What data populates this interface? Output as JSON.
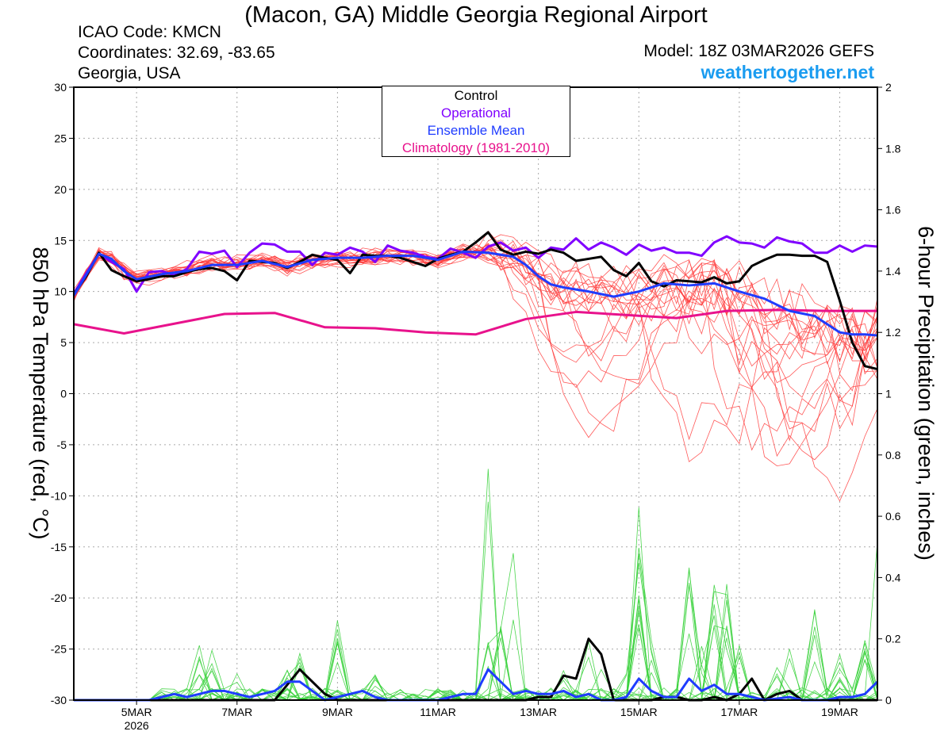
{
  "header": {
    "title": "(Macon, GA) Middle Georgia Regional Airport",
    "icao": "ICAO Code: KMCN",
    "coordinates": "Coordinates: 32.69, -83.65",
    "region": "Georgia, USA",
    "model": "Model: 18Z 03MAR2026 GEFS",
    "site": "weathertogether.net"
  },
  "colors": {
    "control": "#000000",
    "operational": "#8000ff",
    "mean": "#1f3cff",
    "climatology": "#e8128c",
    "temp_members": "#ff3b3b",
    "precip_members": "#39d13b",
    "site": "#1a9cf0",
    "grid": "#aaaaaa"
  },
  "chart_data": {
    "type": "line",
    "title": "(Macon, GA) Middle Georgia Regional Airport",
    "ylabel_left": "850 hPa Temperature (red, °C)",
    "ylabel_right": "6-hour Precipitation (green, inches)",
    "y_left_range": [
      -30,
      30
    ],
    "y_left_ticks": [
      "30",
      "25",
      "20",
      "15",
      "10",
      "5",
      "0",
      "-5",
      "-10",
      "-15",
      "-20",
      "-25",
      "-30"
    ],
    "y_right_range": [
      0,
      2
    ],
    "y_right_ticks": [
      "2",
      "1.8",
      "1.6",
      "1.4",
      "1.2",
      "1",
      "0.8",
      "0.6",
      "0.4",
      "0.2",
      "0"
    ],
    "x_range_days": [
      3.75,
      19.75
    ],
    "x_ticks": [
      {
        "day": 5,
        "label": "5MAR",
        "sublabel": "2026"
      },
      {
        "day": 7,
        "label": "7MAR",
        "sublabel": ""
      },
      {
        "day": 9,
        "label": "9MAR",
        "sublabel": ""
      },
      {
        "day": 11,
        "label": "11MAR",
        "sublabel": ""
      },
      {
        "day": 13,
        "label": "13MAR",
        "sublabel": ""
      },
      {
        "day": 15,
        "label": "15MAR",
        "sublabel": ""
      },
      {
        "day": 17,
        "label": "17MAR",
        "sublabel": ""
      },
      {
        "day": 19,
        "label": "19MAR",
        "sublabel": ""
      }
    ],
    "grid": true,
    "legend": {
      "position": "top-center",
      "entries": [
        "Control",
        "Operational",
        "Ensemble Mean",
        "Climatology (1981-2010)"
      ]
    },
    "series": [
      {
        "name": "Climatology (1981-2010)",
        "axis": "left",
        "role": "climatology",
        "points": [
          [
            3.75,
            6.8
          ],
          [
            4.75,
            5.9
          ],
          [
            6.75,
            7.8
          ],
          [
            7.75,
            7.9
          ],
          [
            8.75,
            6.5
          ],
          [
            9.75,
            6.4
          ],
          [
            10.75,
            6.0
          ],
          [
            11.75,
            5.8
          ],
          [
            12.75,
            7.3
          ],
          [
            13.75,
            8.0
          ],
          [
            15.75,
            7.4
          ],
          [
            16.75,
            8.1
          ],
          [
            17.75,
            8.2
          ],
          [
            18.75,
            8.1
          ],
          [
            19.75,
            8.1
          ]
        ]
      },
      {
        "name": "Operational",
        "axis": "left",
        "role": "operational",
        "points": [
          [
            3.75,
            9.8
          ],
          [
            4.0,
            11.8
          ],
          [
            4.25,
            13.7
          ],
          [
            4.5,
            12.9
          ],
          [
            4.75,
            12.2
          ],
          [
            5.0,
            10.0
          ],
          [
            5.25,
            11.9
          ],
          [
            5.5,
            12.0
          ],
          [
            5.75,
            11.6
          ],
          [
            6.0,
            12.2
          ],
          [
            6.25,
            13.9
          ],
          [
            6.5,
            13.7
          ],
          [
            6.75,
            14.0
          ],
          [
            7.0,
            12.4
          ],
          [
            7.25,
            13.8
          ],
          [
            7.5,
            14.7
          ],
          [
            7.75,
            14.6
          ],
          [
            8.0,
            13.9
          ],
          [
            8.25,
            13.9
          ],
          [
            8.5,
            12.6
          ],
          [
            8.75,
            13.8
          ],
          [
            9.0,
            13.6
          ],
          [
            9.25,
            14.3
          ],
          [
            9.5,
            13.9
          ],
          [
            9.75,
            12.9
          ],
          [
            10.0,
            14.5
          ],
          [
            10.25,
            14.0
          ],
          [
            10.5,
            13.8
          ],
          [
            10.75,
            13.4
          ],
          [
            11.0,
            13.2
          ],
          [
            11.25,
            14.2
          ],
          [
            11.5,
            13.8
          ],
          [
            11.75,
            13.3
          ],
          [
            12.0,
            14.4
          ],
          [
            12.25,
            14.8
          ],
          [
            12.5,
            14.0
          ],
          [
            12.75,
            14.3
          ],
          [
            13.0,
            13.3
          ],
          [
            13.25,
            14.3
          ],
          [
            13.5,
            14.1
          ],
          [
            13.75,
            15.2
          ],
          [
            14.0,
            14.1
          ],
          [
            14.25,
            14.8
          ],
          [
            14.5,
            14.3
          ],
          [
            14.75,
            13.6
          ],
          [
            15.0,
            14.6
          ],
          [
            15.25,
            14.0
          ],
          [
            15.5,
            14.3
          ],
          [
            15.75,
            13.8
          ],
          [
            16.0,
            13.8
          ],
          [
            16.25,
            13.5
          ],
          [
            16.5,
            14.8
          ],
          [
            16.75,
            15.4
          ],
          [
            17.0,
            14.8
          ],
          [
            17.25,
            14.7
          ],
          [
            17.5,
            14.3
          ],
          [
            17.75,
            15.3
          ],
          [
            18.0,
            14.9
          ],
          [
            18.25,
            14.7
          ],
          [
            18.5,
            13.8
          ],
          [
            18.75,
            13.8
          ],
          [
            19.0,
            14.5
          ],
          [
            19.25,
            13.9
          ],
          [
            19.5,
            14.5
          ],
          [
            19.75,
            14.4
          ]
        ]
      },
      {
        "name": "Control",
        "axis": "left",
        "role": "control",
        "points": [
          [
            3.75,
            9.7
          ],
          [
            4.0,
            11.5
          ],
          [
            4.25,
            13.8
          ],
          [
            4.5,
            12.1
          ],
          [
            4.75,
            11.5
          ],
          [
            5.0,
            11.0
          ],
          [
            5.25,
            11.2
          ],
          [
            5.5,
            11.5
          ],
          [
            5.75,
            11.5
          ],
          [
            6.0,
            11.9
          ],
          [
            6.25,
            12.2
          ],
          [
            6.5,
            12.3
          ],
          [
            6.75,
            12.0
          ],
          [
            7.0,
            11.1
          ],
          [
            7.25,
            13.0
          ],
          [
            7.5,
            12.9
          ],
          [
            7.75,
            12.8
          ],
          [
            8.0,
            12.3
          ],
          [
            8.25,
            12.9
          ],
          [
            8.5,
            13.6
          ],
          [
            8.75,
            13.3
          ],
          [
            9.0,
            13.1
          ],
          [
            9.25,
            11.8
          ],
          [
            9.5,
            13.6
          ],
          [
            9.75,
            13.5
          ],
          [
            10.0,
            13.5
          ],
          [
            10.25,
            13.3
          ],
          [
            10.5,
            12.9
          ],
          [
            10.75,
            12.5
          ],
          [
            11.0,
            13.2
          ],
          [
            11.25,
            13.6
          ],
          [
            11.5,
            13.9
          ],
          [
            11.75,
            14.8
          ],
          [
            12.0,
            15.8
          ],
          [
            12.25,
            14.1
          ],
          [
            12.5,
            13.6
          ],
          [
            12.75,
            13.9
          ],
          [
            13.0,
            13.7
          ],
          [
            13.25,
            14.1
          ],
          [
            13.5,
            13.8
          ],
          [
            13.75,
            13.0
          ],
          [
            14.0,
            13.2
          ],
          [
            14.25,
            13.4
          ],
          [
            14.5,
            12.1
          ],
          [
            14.75,
            11.5
          ],
          [
            15.0,
            12.8
          ],
          [
            15.25,
            11.0
          ],
          [
            15.5,
            10.5
          ],
          [
            15.75,
            11.1
          ],
          [
            16.0,
            11.0
          ],
          [
            16.25,
            10.9
          ],
          [
            16.5,
            11.4
          ],
          [
            16.75,
            10.8
          ],
          [
            17.0,
            11.0
          ],
          [
            17.25,
            12.5
          ],
          [
            17.5,
            13.1
          ],
          [
            17.75,
            13.6
          ],
          [
            18.0,
            13.6
          ],
          [
            18.25,
            13.5
          ],
          [
            18.5,
            13.5
          ],
          [
            18.75,
            12.9
          ],
          [
            19.0,
            9.1
          ],
          [
            19.25,
            5.0
          ],
          [
            19.5,
            2.7
          ],
          [
            19.75,
            2.4
          ]
        ]
      },
      {
        "name": "Ensemble Mean",
        "axis": "left",
        "role": "mean",
        "points": [
          [
            3.75,
            9.6
          ],
          [
            4.25,
            13.7
          ],
          [
            4.5,
            13.2
          ],
          [
            4.75,
            12.0
          ],
          [
            5.0,
            11.2
          ],
          [
            5.5,
            11.7
          ],
          [
            6.0,
            12.0
          ],
          [
            6.5,
            12.6
          ],
          [
            7.0,
            12.6
          ],
          [
            7.5,
            13.0
          ],
          [
            8.0,
            12.4
          ],
          [
            8.5,
            13.1
          ],
          [
            9.0,
            13.3
          ],
          [
            9.5,
            13.3
          ],
          [
            10.0,
            13.5
          ],
          [
            10.5,
            13.5
          ],
          [
            11.0,
            13.1
          ],
          [
            11.5,
            13.9
          ],
          [
            12.0,
            13.8
          ],
          [
            12.5,
            13.4
          ],
          [
            12.75,
            12.6
          ],
          [
            13.0,
            11.5
          ],
          [
            13.25,
            10.7
          ],
          [
            13.5,
            10.4
          ],
          [
            13.75,
            10.2
          ],
          [
            14.0,
            10.0
          ],
          [
            14.5,
            9.5
          ],
          [
            15.0,
            10.0
          ],
          [
            15.5,
            10.8
          ],
          [
            16.0,
            10.6
          ],
          [
            16.5,
            10.8
          ],
          [
            17.0,
            10.0
          ],
          [
            17.5,
            9.3
          ],
          [
            18.0,
            8.1
          ],
          [
            18.5,
            7.6
          ],
          [
            18.75,
            6.8
          ],
          [
            19.0,
            6.0
          ],
          [
            19.25,
            5.8
          ],
          [
            19.5,
            5.8
          ],
          [
            19.75,
            5.7
          ]
        ]
      },
      {
        "name": "Control precipitation",
        "axis": "right",
        "role": "control",
        "points": [
          [
            3.75,
            0
          ],
          [
            7.5,
            0
          ],
          [
            7.75,
            0.0
          ],
          [
            8.0,
            0.05
          ],
          [
            8.25,
            0.1
          ],
          [
            8.5,
            0.06
          ],
          [
            8.75,
            0.02
          ],
          [
            9.0,
            0
          ],
          [
            11.5,
            0
          ],
          [
            12.75,
            0
          ],
          [
            13.0,
            0.01
          ],
          [
            13.25,
            0.01
          ],
          [
            13.5,
            0.08
          ],
          [
            13.75,
            0.07
          ],
          [
            14.0,
            0.2
          ],
          [
            14.25,
            0.15
          ],
          [
            14.5,
            0.0
          ],
          [
            15.0,
            0
          ],
          [
            15.25,
            0.0
          ],
          [
            15.5,
            0.01
          ],
          [
            15.75,
            0.01
          ],
          [
            16.0,
            0.0
          ],
          [
            16.25,
            0.0
          ],
          [
            16.5,
            0.01
          ],
          [
            16.75,
            0.0
          ],
          [
            17.0,
            0.02
          ],
          [
            17.25,
            0.07
          ],
          [
            17.5,
            0.0
          ],
          [
            17.75,
            0.02
          ],
          [
            18.0,
            0.03
          ],
          [
            18.25,
            0.0
          ],
          [
            19.75,
            0
          ]
        ]
      },
      {
        "name": "Ensemble Mean precipitation",
        "axis": "right",
        "role": "mean",
        "points": [
          [
            3.75,
            0
          ],
          [
            5.25,
            0
          ],
          [
            5.5,
            0.01
          ],
          [
            5.75,
            0.02
          ],
          [
            6.0,
            0.01
          ],
          [
            6.25,
            0.02
          ],
          [
            6.5,
            0.03
          ],
          [
            6.75,
            0.03
          ],
          [
            7.0,
            0.02
          ],
          [
            7.25,
            0.01
          ],
          [
            7.5,
            0.02
          ],
          [
            7.75,
            0.03
          ],
          [
            8.0,
            0.06
          ],
          [
            8.25,
            0.06
          ],
          [
            8.5,
            0.03
          ],
          [
            8.75,
            0.0
          ],
          [
            9.0,
            0.01
          ],
          [
            9.25,
            0.02
          ],
          [
            9.5,
            0.03
          ],
          [
            9.75,
            0.01
          ],
          [
            10.0,
            0.0
          ],
          [
            11.0,
            0.0
          ],
          [
            11.25,
            0.01
          ],
          [
            11.5,
            0.02
          ],
          [
            11.75,
            0.02
          ],
          [
            12.0,
            0.1
          ],
          [
            12.25,
            0.06
          ],
          [
            12.5,
            0.02
          ],
          [
            12.75,
            0.03
          ],
          [
            13.0,
            0.02
          ],
          [
            13.25,
            0.02
          ],
          [
            13.5,
            0.03
          ],
          [
            13.75,
            0.01
          ],
          [
            14.0,
            0.02
          ],
          [
            14.25,
            0.0
          ],
          [
            14.5,
            0.0
          ],
          [
            14.75,
            0.01
          ],
          [
            15.0,
            0.07
          ],
          [
            15.25,
            0.03
          ],
          [
            15.5,
            0.01
          ],
          [
            15.75,
            0.01
          ],
          [
            16.0,
            0.07
          ],
          [
            16.25,
            0.03
          ],
          [
            16.5,
            0.05
          ],
          [
            16.75,
            0.02
          ],
          [
            17.0,
            0.02
          ],
          [
            17.25,
            0.01
          ],
          [
            17.5,
            0.0
          ],
          [
            18.0,
            0.01
          ],
          [
            18.25,
            0.0
          ],
          [
            18.5,
            0.0
          ],
          [
            18.75,
            0.0
          ],
          [
            19.0,
            0.01
          ],
          [
            19.25,
            0.01
          ],
          [
            19.5,
            0.02
          ],
          [
            19.75,
            0.06
          ]
        ]
      }
    ]
  }
}
